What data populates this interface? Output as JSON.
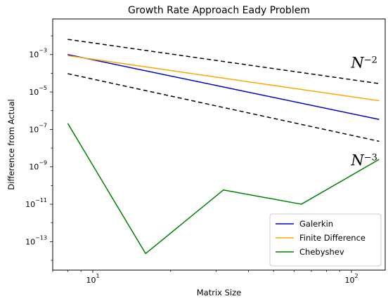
{
  "chart_data": {
    "type": "line",
    "title": "Growth Rate Approach Eady Problem",
    "xlabel": "Matrix Size",
    "ylabel": "Difference from Actual",
    "xscale": "log",
    "yscale": "log",
    "xlim": [
      7,
      135
    ],
    "ylim": [
      3e-15,
      0.08
    ],
    "grid": false,
    "legend_position": "lower-right",
    "x_ticks": [
      {
        "value": 10,
        "base": "10",
        "exp": "1"
      },
      {
        "value": 100,
        "base": "10",
        "exp": "2"
      }
    ],
    "y_ticks": [
      {
        "value": 1e-13,
        "base": "10",
        "exp": "−13"
      },
      {
        "value": 1e-11,
        "base": "10",
        "exp": "−11"
      },
      {
        "value": 1e-09,
        "base": "10",
        "exp": "−9"
      },
      {
        "value": 1e-07,
        "base": "10",
        "exp": "−7"
      },
      {
        "value": 1e-05,
        "base": "10",
        "exp": "−5"
      },
      {
        "value": 0.001,
        "base": "10",
        "exp": "−3"
      }
    ],
    "series": [
      {
        "name": "Galerkin",
        "color": "#0000cc",
        "dash": "",
        "legend": true,
        "x": [
          8,
          128
        ],
        "y": [
          0.001,
          3.4e-07
        ]
      },
      {
        "name": "Finite Difference",
        "color": "#ffa500",
        "dash": "",
        "legend": true,
        "x": [
          8,
          128
        ],
        "y": [
          0.00088,
          3.4e-06
        ]
      },
      {
        "name": "Chebyshev",
        "color": "#008000",
        "dash": "",
        "legend": true,
        "x": [
          8,
          16,
          32,
          64,
          128
        ],
        "y": [
          2.1e-07,
          2.3e-14,
          5.8e-11,
          1e-11,
          2.5e-09
        ]
      },
      {
        "name": "",
        "color": "#000000",
        "dash": "6,4",
        "legend": false,
        "x": [
          8,
          128
        ],
        "y": [
          0.0065,
          2.8e-05
        ]
      },
      {
        "name": "",
        "color": "#000000",
        "dash": "6,4",
        "legend": false,
        "x": [
          8,
          128
        ],
        "y": [
          9.5e-05,
          2.3e-08
        ]
      }
    ],
    "annotations": [
      {
        "base": "N",
        "exp": "−2",
        "x": 112,
        "y": 0.0002
      },
      {
        "base": "N",
        "exp": "−3",
        "x": 112,
        "y": 1.2e-09
      }
    ]
  }
}
